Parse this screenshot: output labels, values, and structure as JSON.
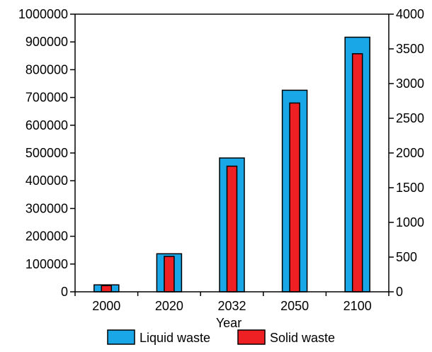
{
  "chart_data": {
    "type": "bar",
    "categories": [
      "2000",
      "2020",
      "2032",
      "2050",
      "2100"
    ],
    "series": [
      {
        "name": "Liquid waste",
        "axis": "left",
        "color": "#1aa7e8",
        "values": [
          25000,
          137000,
          482000,
          726000,
          917000
        ]
      },
      {
        "name": "Solid waste",
        "axis": "right",
        "color": "#ee2024",
        "values": [
          90,
          510,
          1810,
          2720,
          3430
        ]
      }
    ],
    "xlabel": "Year",
    "ylabel": "",
    "y2label": "",
    "ylim": [
      0,
      1000000
    ],
    "y2lim": [
      0,
      4000
    ],
    "yticks": [
      "0",
      "100000",
      "200000",
      "300000",
      "400000",
      "500000",
      "600000",
      "700000",
      "800000",
      "900000",
      "1000000"
    ],
    "y2ticks": [
      "0",
      "500",
      "1000",
      "1500",
      "2000",
      "2500",
      "3000",
      "3500",
      "4000"
    ],
    "grid": false,
    "legend_position": "bottom"
  }
}
